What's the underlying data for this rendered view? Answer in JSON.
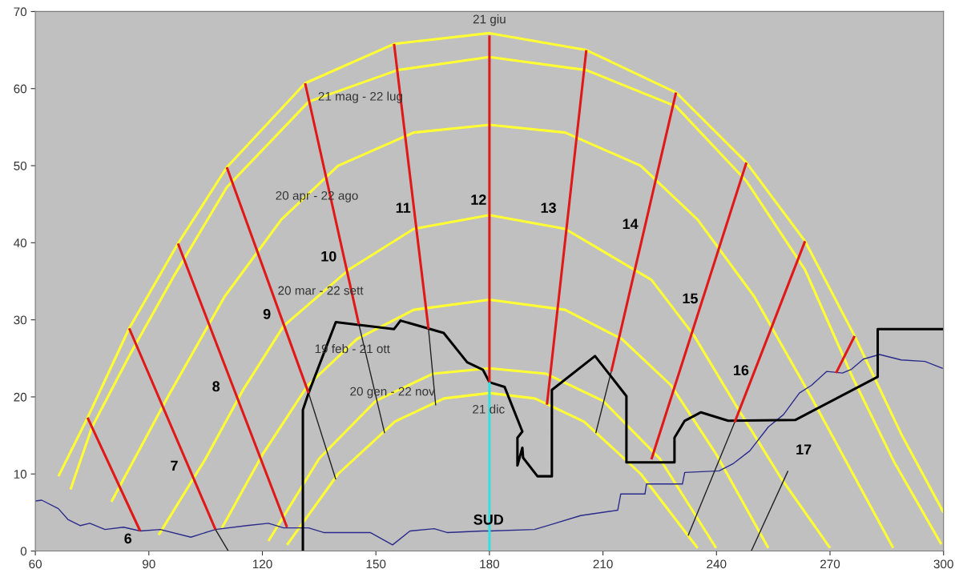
{
  "chart_data": {
    "type": "line",
    "xlim": [
      60,
      300
    ],
    "ylim": [
      0,
      70
    ],
    "xticks": [
      60,
      90,
      120,
      150,
      180,
      210,
      240,
      270,
      300
    ],
    "yticks": [
      0,
      10,
      20,
      30,
      40,
      50,
      60,
      70
    ],
    "grid": false,
    "marker": "none",
    "series": [
      {
        "color": "#ffff33",
        "x": [
          66.1,
          73.8,
          84.8,
          97.7,
          110.6,
          131.3,
          154.8,
          180,
          205.6,
          229.3,
          247.9,
          263.4,
          276.5,
          289,
          300
        ],
        "values": [
          9.7,
          17.3,
          28.9,
          39.9,
          49.8,
          60.7,
          65.8,
          67.2,
          65.0,
          59.5,
          50.4,
          40.2,
          27.9,
          15,
          5
        ]
      },
      {
        "color": "#ffff33",
        "x": [
          69.3,
          75,
          85,
          97,
          110.6,
          132.2,
          155.7,
          180,
          205.6,
          229.3,
          247.9,
          263.4,
          276,
          287,
          299.4
        ],
        "values": [
          8.0,
          16.1,
          25.5,
          36,
          47.2,
          58.3,
          62.4,
          64.1,
          62.4,
          57.7,
          48,
          36.5,
          22.5,
          11.5,
          0.9
        ]
      },
      {
        "color": "#ffff33",
        "x": [
          80.1,
          95,
          110,
          125,
          140,
          160,
          180,
          200,
          220,
          235,
          250,
          265,
          286.7
        ],
        "values": [
          6.4,
          20,
          33,
          43,
          50,
          54.3,
          55.3,
          54.3,
          50,
          43,
          33,
          20,
          0.4
        ]
      },
      {
        "color": "#ffff33",
        "x": [
          92.6,
          105,
          115,
          125.6,
          142.8,
          160,
          180,
          200,
          222.8,
          234,
          245,
          257,
          270
        ],
        "values": [
          2.1,
          12,
          21,
          29.2,
          36.5,
          41.8,
          43.6,
          41.8,
          35.2,
          28,
          19,
          9.5,
          0.4
        ]
      },
      {
        "color": "#ffff33",
        "x": [
          109.3,
          120,
          132,
          145,
          160,
          180,
          200,
          215,
          228,
          240,
          253.7
        ],
        "values": [
          3.0,
          12.5,
          21.5,
          27.5,
          31.3,
          32.6,
          31.3,
          27.5,
          21.5,
          12.5,
          0.4
        ]
      },
      {
        "color": "#ffff33",
        "x": [
          121.6,
          135,
          150,
          165,
          180,
          195,
          210,
          225,
          239.9
        ],
        "values": [
          1.3,
          12,
          19.5,
          23,
          23.7,
          23,
          19.5,
          12,
          0.4
        ]
      },
      {
        "color": "#ffff33",
        "x": [
          126.5,
          140,
          155,
          168,
          180,
          192,
          205,
          220,
          235
        ],
        "values": [
          0.8,
          10,
          16.8,
          19.8,
          20.5,
          19.8,
          16.8,
          10,
          0.4
        ]
      },
      {
        "color": "#2a2a8c",
        "x": [
          60,
          61.7,
          66.1,
          68.6,
          71.9,
          74.4,
          78.4,
          83.3,
          87.7,
          93,
          101.1,
          107.6,
          115.9,
          121.6,
          125.6,
          132.2,
          136.2,
          148.5,
          154.4,
          159.0,
          165.4,
          168.8,
          178.3,
          180,
          191.9,
          196.7,
          204.1,
          213.9,
          214.7,
          221.1,
          221.5,
          231.0,
          231.6,
          240.7,
          244.3,
          248.8,
          253.7,
          257.7,
          261.9,
          265.1,
          269.1,
          273.3,
          275.7,
          278.8,
          283.1,
          288.8,
          295.1,
          299.8
        ],
        "values": [
          6.5,
          6.6,
          5.5,
          4.1,
          3.3,
          3.6,
          2.8,
          3.1,
          2.6,
          2.8,
          1.8,
          2.8,
          3.3,
          3.6,
          3.0,
          3.0,
          2.4,
          2.4,
          0.8,
          2.6,
          2.9,
          2.4,
          2.6,
          2.6,
          2.8,
          3.5,
          4.6,
          5.3,
          7.4,
          7.4,
          8.7,
          8.7,
          10.2,
          10.4,
          11.3,
          13.0,
          16.1,
          17.7,
          20.5,
          21.5,
          23.3,
          23.1,
          23.6,
          24.9,
          25.5,
          24.8,
          24.6,
          23.7
        ]
      },
      {
        "color": "#202020",
        "x": [
          107.6,
          111,
          null,
          132.2,
          139.4,
          null,
          145.5,
          152.3,
          null,
          163.9,
          165.8,
          null,
          212.2,
          208.1,
          null,
          244.8,
          232.5,
          null,
          258.9,
          249.2
        ],
        "values": [
          2.8,
          0,
          null,
          20.5,
          9.3,
          null,
          29.4,
          15.3,
          null,
          28.8,
          18.9,
          null,
          23.3,
          15.3,
          null,
          16.7,
          2.0,
          null,
          10.4,
          0
        ]
      },
      {
        "color": "#000000",
        "x": [
          130.7,
          130.7,
          132.2,
          139.4,
          154.8,
          156.5,
          167.9,
          174.1,
          178.3,
          180,
          184.0,
          188.7,
          187.4,
          187.4,
          188.7,
          188.9,
          192.7,
          196.5,
          196.5,
          207.9,
          216.2,
          216.2,
          228.9,
          228.9,
          231.6,
          235.9,
          243.1,
          260.8,
          282.6,
          282.6,
          300
        ],
        "values": [
          0,
          18.3,
          20.5,
          29.7,
          28.8,
          29.9,
          28.3,
          24.5,
          23.5,
          21.9,
          21.3,
          15.5,
          14.7,
          11.1,
          13.4,
          12.1,
          9.7,
          9.7,
          20.9,
          25.3,
          20.1,
          11.5,
          11.5,
          14.7,
          16.9,
          18.0,
          16.9,
          17.0,
          22.6,
          28.8,
          28.8
        ]
      },
      {
        "color": "#e01818",
        "x": [
          73.8,
          87.7,
          null,
          84.8,
          107.6,
          null,
          97.7,
          126.5,
          null,
          110.6,
          132.2,
          null,
          131.3,
          145.5,
          null,
          154.8,
          163.9,
          null,
          180,
          180,
          null,
          205.6,
          195.2,
          null,
          229.3,
          212.2,
          null,
          247.9,
          222.8,
          null,
          263.4,
          244.8,
          null,
          276.5,
          271.6
        ],
        "values": [
          17.3,
          2.6,
          null,
          28.9,
          2.8,
          null,
          39.9,
          3.1,
          null,
          49.8,
          20.5,
          null,
          60.7,
          29.4,
          null,
          65.8,
          28.8,
          null,
          66.9,
          21.9,
          null,
          65.0,
          19.0,
          null,
          59.5,
          23.3,
          null,
          50.4,
          11.9,
          null,
          40.2,
          16.7,
          null,
          27.9,
          23.1
        ]
      },
      {
        "color": "#33e0e0",
        "x": [
          180,
          180
        ],
        "values": [
          0,
          21.9
        ]
      }
    ],
    "annotations": [
      "21 giu",
      "21 mag - 22 lug",
      "20 apr - 22 ago",
      "20 mar - 22 sett",
      "19 feb - 21 ott",
      "20 gen - 22 nov",
      "21 dic",
      "SUD",
      "6",
      "7",
      "8",
      "9",
      "10",
      "11",
      "12",
      "13",
      "14",
      "15",
      "16",
      "17"
    ]
  }
}
